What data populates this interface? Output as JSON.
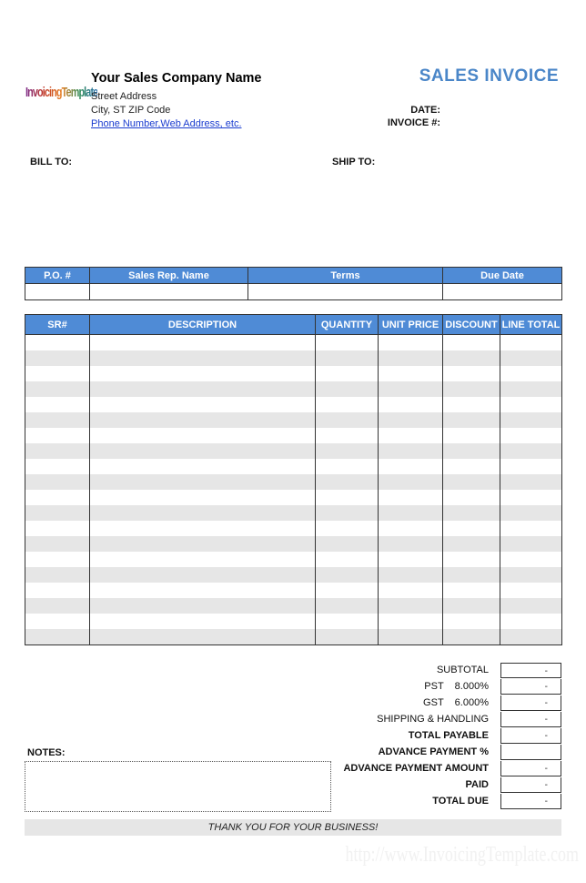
{
  "logo": "InvoicingTemplate",
  "company": {
    "name": "Your Sales Company Name",
    "street": "Street Address",
    "city": "City, ST  ZIP Code",
    "contact": "Phone Number,Web Address, etc."
  },
  "title": "SALES INVOICE",
  "date_label": "DATE:",
  "invoice_label": "INVOICE #:",
  "bill_to": "BILL TO:",
  "ship_to": "SHIP TO:",
  "order_headers": [
    "P.O. #",
    "Sales Rep. Name",
    "Terms",
    "Due Date"
  ],
  "item_headers": [
    "SR#",
    "DESCRIPTION",
    "QUANTITY",
    "UNIT PRICE",
    "DISCOUNT",
    "LINE TOTAL"
  ],
  "totals": [
    {
      "label": "SUBTOTAL",
      "value": "-",
      "bold": false
    },
    {
      "label": "PST    8.000%",
      "value": "-",
      "bold": false
    },
    {
      "label": "GST    6.000%",
      "value": "-",
      "bold": false
    },
    {
      "label": "SHIPPING & HANDLING",
      "value": "-",
      "bold": false
    },
    {
      "label": "TOTAL PAYABLE",
      "value": "-",
      "bold": true
    },
    {
      "label": "ADVANCE PAYMENT %",
      "value": "",
      "bold": true
    },
    {
      "label": "ADVANCE PAYMENT AMOUNT",
      "value": "-",
      "bold": true
    },
    {
      "label": "PAID",
      "value": "-",
      "bold": true
    },
    {
      "label": "TOTAL DUE",
      "value": "-",
      "bold": true
    }
  ],
  "notes_label": "NOTES:",
  "thanks": "THANK YOU FOR YOUR BUSINESS!",
  "watermark": "http://www.InvoicingTemplate.com",
  "colors": {
    "header": "#4f8bd6",
    "title": "#4a86c8",
    "stripe": "#e6e6e6"
  }
}
